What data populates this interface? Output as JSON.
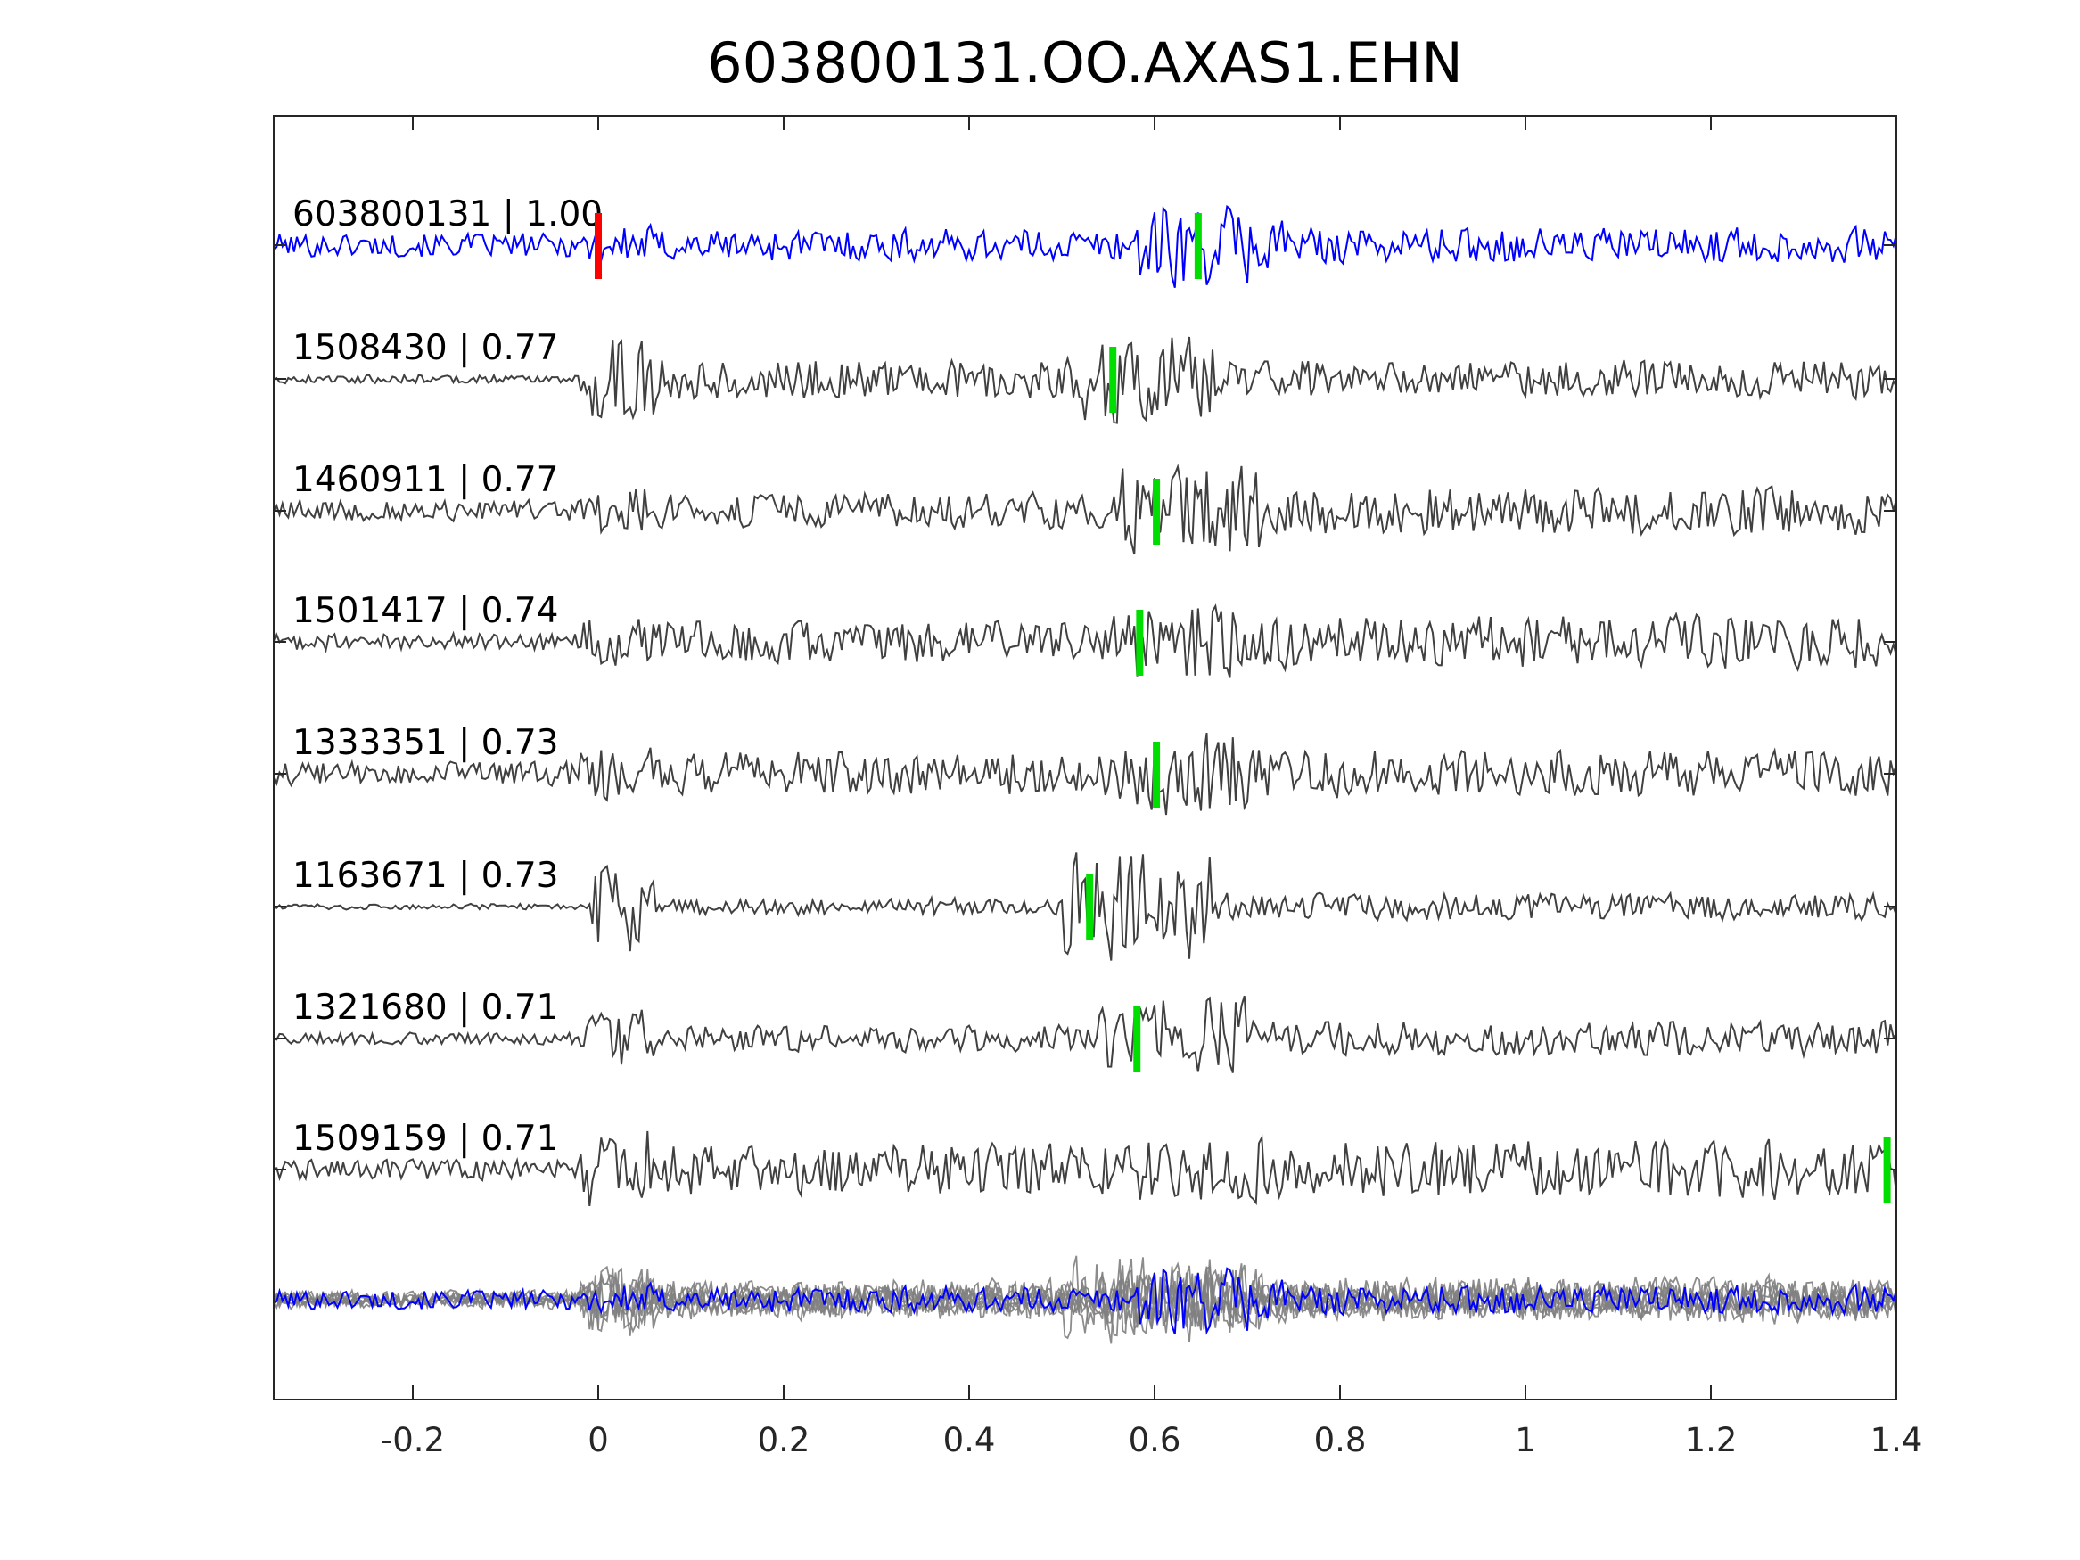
{
  "chart_data": {
    "type": "line",
    "title": "603800131.OO.AXAS1.EHN",
    "xlabel": "",
    "ylabel": "",
    "xlim": [
      -0.35,
      1.4
    ],
    "xticks": [
      "-0.2",
      "0",
      "0.2",
      "0.4",
      "0.6",
      "0.8",
      "1",
      "1.2",
      "1.4"
    ],
    "xtick_values": [
      -0.2,
      0,
      0.2,
      0.4,
      0.6,
      0.8,
      1.0,
      1.2,
      1.4
    ],
    "grid": false,
    "colors": {
      "template": "#0000ff",
      "trace": "#404040",
      "stack": "#808080",
      "origin_marker": "#ff0000",
      "pick_marker": "#00dd00",
      "axis": "#262626"
    },
    "template": {
      "event_id": "603800131",
      "cc": "1.00",
      "label": "603800131 | 1.00",
      "origin_marker_x": 0.0,
      "pick_marker_x": 0.647
    },
    "traces": [
      {
        "event_id": "1508430",
        "cc": "0.77",
        "label": "1508430 | 0.77",
        "pick_marker_x": 0.555
      },
      {
        "event_id": "1460911",
        "cc": "0.77",
        "label": "1460911 | 0.77",
        "pick_marker_x": 0.602
      },
      {
        "event_id": "1501417",
        "cc": "0.74",
        "label": "1501417 | 0.74",
        "pick_marker_x": 0.584
      },
      {
        "event_id": "1333351",
        "cc": "0.73",
        "label": "1333351 | 0.73",
        "pick_marker_x": 0.602
      },
      {
        "event_id": "1163671",
        "cc": "0.73",
        "label": "1163671 | 0.73",
        "pick_marker_x": 0.53
      },
      {
        "event_id": "1321680",
        "cc": "0.71",
        "label": "1321680 | 0.71",
        "pick_marker_x": 0.581
      },
      {
        "event_id": "1509159",
        "cc": "0.71",
        "label": "1509159 | 0.71",
        "pick_marker_x": 1.39
      }
    ]
  }
}
